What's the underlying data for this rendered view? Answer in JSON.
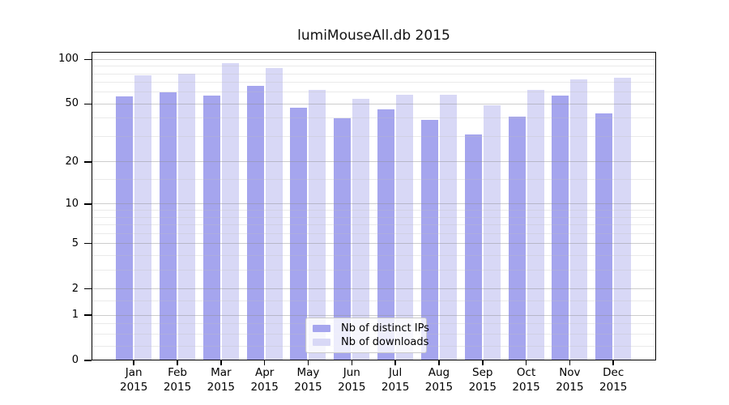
{
  "chart_data": {
    "type": "bar",
    "title": "lumiMouseAll.db 2015",
    "xlabel": "",
    "ylabel": "",
    "year_label": "2015",
    "categories": [
      "Jan",
      "Feb",
      "Mar",
      "Apr",
      "May",
      "Jun",
      "Jul",
      "Aug",
      "Sep",
      "Oct",
      "Nov",
      "Dec"
    ],
    "series": [
      {
        "name": "Nb of distinct IPs",
        "color": "#a5a5ee",
        "values": [
          56,
          60,
          57,
          66,
          47,
          40,
          46,
          39,
          31,
          41,
          57,
          43
        ]
      },
      {
        "name": "Nb of downloads",
        "color": "#d8d8f6",
        "values": [
          78,
          80,
          94,
          87,
          62,
          54,
          58,
          58,
          49,
          62,
          73,
          75
        ]
      }
    ],
    "y_scale": "symlog ln(1+v)",
    "y_ticks": [
      0,
      1,
      2,
      5,
      10,
      20,
      50,
      100
    ],
    "y_minor_gridlines": [
      0.25,
      0.5,
      0.75,
      1.5,
      3,
      4,
      6,
      7,
      8,
      9,
      15,
      30,
      40,
      60,
      70,
      80,
      90
    ],
    "ylim": [
      0,
      112
    ],
    "grid": "horizontal major+minor, drawn over bars",
    "legend_position": "inside bottom-center"
  },
  "legend": {
    "items": [
      {
        "label": "Nb of distinct IPs"
      },
      {
        "label": "Nb of downloads"
      }
    ]
  }
}
